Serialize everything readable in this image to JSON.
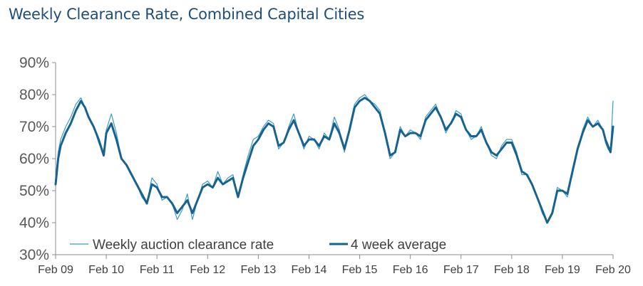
{
  "chart_data": {
    "type": "line",
    "title": "Weekly Clearance Rate, Combined Capital Cities",
    "xlabel": "",
    "ylabel": "",
    "ylim": [
      30,
      90
    ],
    "xlim": [
      2009,
      2020
    ],
    "y_ticks": [
      "30%",
      "40%",
      "50%",
      "60%",
      "70%",
      "80%",
      "90%"
    ],
    "y_tick_values": [
      30,
      40,
      50,
      60,
      70,
      80,
      90
    ],
    "x_ticks": [
      "Feb 09",
      "Feb 10",
      "Feb 11",
      "Feb 12",
      "Feb 13",
      "Feb 14",
      "Feb 15",
      "Feb 16",
      "Feb 17",
      "Feb 18",
      "Feb 19",
      "Feb 20"
    ],
    "x_tick_values": [
      2009,
      2010,
      2011,
      2012,
      2013,
      2014,
      2015,
      2016,
      2017,
      2018,
      2019,
      2020
    ],
    "legend_position": "bottom-left",
    "series": [
      {
        "name": "Weekly auction clearance rate",
        "style": "thin",
        "color": "#3a9bc8",
        "x": [
          2009.0,
          2009.05,
          2009.1,
          2009.2,
          2009.3,
          2009.4,
          2009.5,
          2009.58,
          2009.65,
          2009.75,
          2009.85,
          2009.95,
          2010.0,
          2010.1,
          2010.2,
          2010.3,
          2010.4,
          2010.5,
          2010.6,
          2010.7,
          2010.8,
          2010.9,
          2011.0,
          2011.1,
          2011.2,
          2011.3,
          2011.4,
          2011.5,
          2011.6,
          2011.7,
          2011.8,
          2011.9,
          2012.0,
          2012.1,
          2012.2,
          2012.3,
          2012.4,
          2012.5,
          2012.6,
          2012.7,
          2012.8,
          2012.9,
          2013.0,
          2013.1,
          2013.2,
          2013.3,
          2013.4,
          2013.5,
          2013.6,
          2013.7,
          2013.8,
          2013.9,
          2014.0,
          2014.1,
          2014.2,
          2014.3,
          2014.4,
          2014.5,
          2014.6,
          2014.7,
          2014.8,
          2014.9,
          2015.0,
          2015.1,
          2015.2,
          2015.3,
          2015.4,
          2015.5,
          2015.6,
          2015.7,
          2015.8,
          2015.9,
          2016.0,
          2016.1,
          2016.2,
          2016.3,
          2016.4,
          2016.5,
          2016.6,
          2016.7,
          2016.8,
          2016.9,
          2017.0,
          2017.1,
          2017.2,
          2017.3,
          2017.4,
          2017.5,
          2017.6,
          2017.7,
          2017.8,
          2017.9,
          2018.0,
          2018.1,
          2018.2,
          2018.3,
          2018.4,
          2018.5,
          2018.6,
          2018.7,
          2018.8,
          2018.9,
          2019.0,
          2019.1,
          2019.2,
          2019.3,
          2019.4,
          2019.5,
          2019.6,
          2019.7,
          2019.8,
          2019.85,
          2019.9,
          2019.95,
          2020.0
        ],
        "values": [
          53,
          62,
          66,
          70,
          73,
          77,
          79,
          76,
          73,
          70,
          65,
          61,
          69,
          74,
          68,
          60,
          58,
          55,
          52,
          48,
          46,
          54,
          52,
          47,
          48,
          46,
          41,
          44,
          49,
          41,
          47,
          52,
          53,
          51,
          56,
          52,
          54,
          55,
          48,
          55,
          61,
          66,
          67,
          70,
          72,
          71,
          63,
          65,
          70,
          74,
          68,
          63,
          67,
          66,
          63,
          68,
          66,
          73,
          69,
          62,
          70,
          77,
          79,
          80,
          78,
          77,
          75,
          68,
          60,
          62,
          70,
          67,
          69,
          68,
          66,
          73,
          75,
          77,
          73,
          68,
          71,
          75,
          74,
          69,
          66,
          67,
          70,
          65,
          61,
          60,
          64,
          66,
          66,
          62,
          55,
          55,
          52,
          48,
          43,
          40,
          43,
          51,
          50,
          48,
          57,
          63,
          69,
          73,
          70,
          72,
          69,
          65,
          63,
          62,
          78
        ]
      },
      {
        "name": "4 week average",
        "style": "thick",
        "color": "#17628e",
        "x": [
          2009.0,
          2009.05,
          2009.1,
          2009.2,
          2009.3,
          2009.4,
          2009.5,
          2009.58,
          2009.65,
          2009.75,
          2009.85,
          2009.95,
          2010.0,
          2010.1,
          2010.2,
          2010.3,
          2010.4,
          2010.5,
          2010.6,
          2010.7,
          2010.8,
          2010.9,
          2011.0,
          2011.1,
          2011.2,
          2011.3,
          2011.4,
          2011.5,
          2011.6,
          2011.7,
          2011.8,
          2011.9,
          2012.0,
          2012.1,
          2012.2,
          2012.3,
          2012.4,
          2012.5,
          2012.6,
          2012.7,
          2012.8,
          2012.9,
          2013.0,
          2013.1,
          2013.2,
          2013.3,
          2013.4,
          2013.5,
          2013.6,
          2013.7,
          2013.8,
          2013.9,
          2014.0,
          2014.1,
          2014.2,
          2014.3,
          2014.4,
          2014.5,
          2014.6,
          2014.7,
          2014.8,
          2014.9,
          2015.0,
          2015.1,
          2015.2,
          2015.3,
          2015.4,
          2015.5,
          2015.6,
          2015.7,
          2015.8,
          2015.9,
          2016.0,
          2016.1,
          2016.2,
          2016.3,
          2016.4,
          2016.5,
          2016.6,
          2016.7,
          2016.8,
          2016.9,
          2017.0,
          2017.1,
          2017.2,
          2017.3,
          2017.4,
          2017.5,
          2017.6,
          2017.7,
          2017.8,
          2017.9,
          2018.0,
          2018.1,
          2018.2,
          2018.3,
          2018.4,
          2018.5,
          2018.6,
          2018.7,
          2018.8,
          2018.9,
          2019.0,
          2019.1,
          2019.2,
          2019.3,
          2019.4,
          2019.5,
          2019.6,
          2019.7,
          2019.8,
          2019.85,
          2019.9,
          2019.95,
          2020.0
        ],
        "values": [
          52,
          60,
          64,
          68,
          71,
          75,
          78,
          76,
          73,
          70,
          66,
          61,
          68,
          71,
          66,
          60,
          58,
          55,
          52,
          49,
          46,
          52,
          51,
          48,
          48,
          46,
          43,
          45,
          47,
          43,
          47,
          51,
          52,
          51,
          54,
          52,
          53,
          54,
          48,
          54,
          59,
          64,
          66,
          69,
          71,
          70,
          64,
          65,
          69,
          72,
          68,
          64,
          66,
          66,
          64,
          67,
          66,
          71,
          68,
          63,
          69,
          76,
          78,
          79,
          78,
          76,
          74,
          68,
          61,
          62,
          69,
          67,
          68,
          68,
          67,
          72,
          74,
          76,
          73,
          69,
          71,
          74,
          73,
          69,
          67,
          67,
          69,
          65,
          62,
          61,
          63,
          65,
          65,
          61,
          56,
          55,
          52,
          48,
          44,
          40,
          43,
          50,
          50,
          49,
          56,
          63,
          68,
          72,
          70,
          71,
          69,
          66,
          64,
          62,
          70
        ]
      }
    ]
  }
}
